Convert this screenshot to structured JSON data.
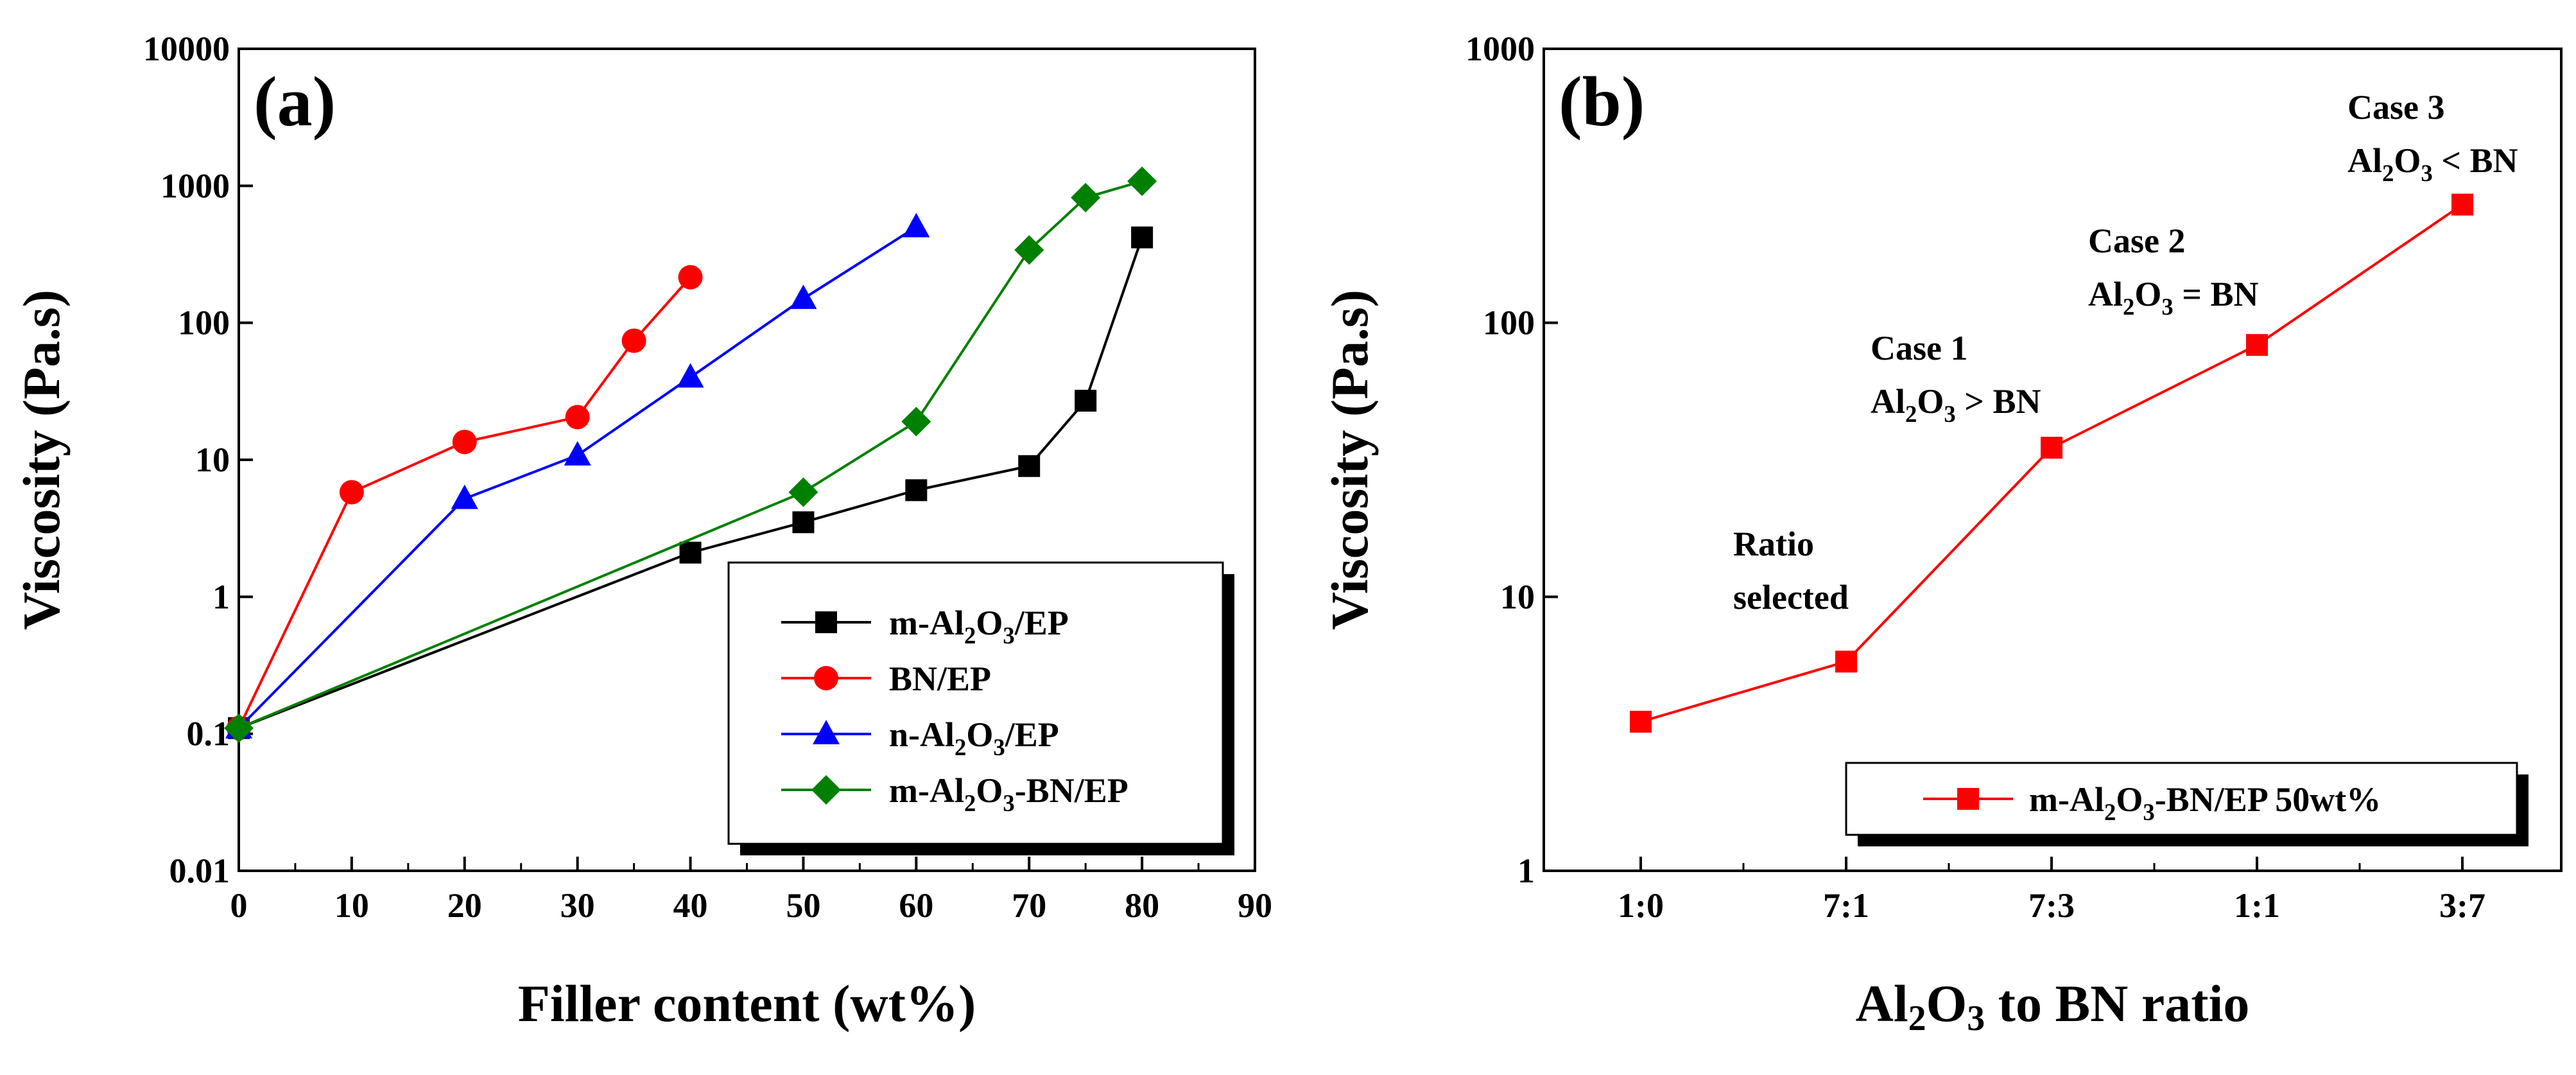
{
  "figure": {
    "panels": [
      "a",
      "b"
    ]
  },
  "chart_data": [
    {
      "type": "line",
      "panel_label": "(a)",
      "y_scale": "log",
      "xlabel": "Filler content (wt%)",
      "ylabel": "Viscosity (Pa.s)",
      "xlim": [
        0,
        90
      ],
      "ylim": [
        0.01,
        10000
      ],
      "x_ticks": [
        "0",
        "10",
        "20",
        "30",
        "40",
        "50",
        "60",
        "70",
        "80",
        "90"
      ],
      "y_ticks": [
        "0.01",
        "0.1",
        "1",
        "10",
        "100",
        "1000",
        "10000"
      ],
      "series": [
        {
          "name": "m-Al2O3/EP",
          "legend_parts": [
            "m-Al",
            "2",
            "O",
            "3",
            "/EP"
          ],
          "color": "#000000",
          "marker": "square",
          "x": [
            0,
            40,
            50,
            60,
            70,
            75,
            80
          ],
          "y": [
            0.11,
            2.1,
            3.5,
            6.0,
            9.0,
            27,
            420
          ]
        },
        {
          "name": "BN/EP",
          "legend_parts": [
            "BN/EP"
          ],
          "color": "#ff0000",
          "marker": "circle",
          "x": [
            0,
            10,
            20,
            30,
            35,
            40
          ],
          "y": [
            0.11,
            5.8,
            13.5,
            20.5,
            74,
            215
          ]
        },
        {
          "name": "n-Al2O3/EP",
          "legend_parts": [
            "n-Al",
            "2",
            "O",
            "3",
            "/EP"
          ],
          "color": "#0000ff",
          "marker": "triangle",
          "x": [
            0,
            20,
            30,
            40,
            50,
            60
          ],
          "y": [
            0.11,
            5.2,
            10.8,
            40,
            150,
            500
          ]
        },
        {
          "name": "m-Al2O3-BN/EP",
          "legend_parts": [
            "m-Al",
            "2",
            "O",
            "3",
            "-BN/EP"
          ],
          "color": "#008000",
          "marker": "diamond",
          "x": [
            0,
            50,
            60,
            70,
            75,
            80
          ],
          "y": [
            0.11,
            5.8,
            19,
            340,
            820,
            1080
          ]
        }
      ],
      "legend_position": "lower-right"
    },
    {
      "type": "line",
      "panel_label": "(b)",
      "y_scale": "log",
      "xlabel_parts": [
        "Al",
        "2",
        "O",
        "3",
        " to BN ratio"
      ],
      "xlabel": "Al2O3 to BN ratio",
      "ylabel": "Viscosity (Pa.s)",
      "categories": [
        "1:0",
        "7:1",
        "7:3",
        "1:1",
        "3:7"
      ],
      "ylim": [
        1,
        1000
      ],
      "y_ticks": [
        "1",
        "10",
        "100",
        "1000"
      ],
      "series": [
        {
          "name": "m-Al2O3-BN/EP 50wt%",
          "legend_parts": [
            "m-Al",
            "2",
            "O",
            "3",
            "-BN/EP 50wt%"
          ],
          "color": "#ff0000",
          "marker": "square",
          "values": [
            3.5,
            5.8,
            35,
            83,
            270
          ]
        }
      ],
      "annotations": [
        {
          "lines": [
            [
              "Ratio"
            ],
            [
              "selected"
            ]
          ],
          "category": "7:1"
        },
        {
          "lines": [
            [
              "Case 1"
            ],
            [
              "Al",
              "2",
              "O",
              "3",
              " > BN"
            ]
          ],
          "category": "7:3"
        },
        {
          "lines": [
            [
              "Case 2"
            ],
            [
              "Al",
              "2",
              "O",
              "3",
              " = BN"
            ]
          ],
          "category": "1:1"
        },
        {
          "lines": [
            [
              "Case 3"
            ],
            [
              "Al",
              "2",
              "O",
              "3",
              " < BN"
            ]
          ],
          "category": "3:7"
        }
      ],
      "legend_position": "bottom-right"
    }
  ]
}
